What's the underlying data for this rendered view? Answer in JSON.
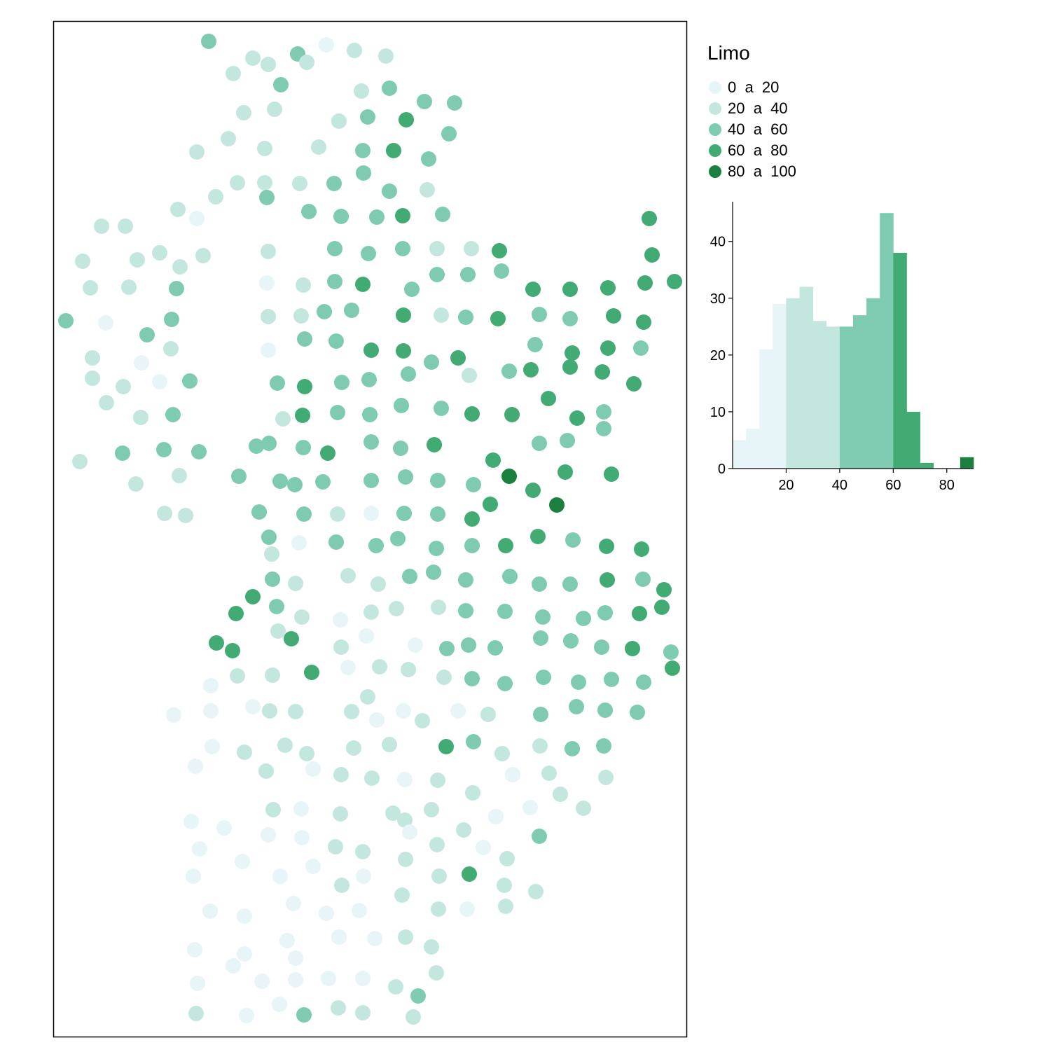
{
  "legend": {
    "title": "Limo",
    "classes": [
      {
        "label": "0  a  20",
        "color": "#e7f4f8"
      },
      {
        "label": "20  a  40",
        "color": "#c3e6df"
      },
      {
        "label": "40  a  60",
        "color": "#7ecbb2"
      },
      {
        "label": "60  a  80",
        "color": "#42ab74"
      },
      {
        "label": "80  a  100",
        "color": "#1b7f3f"
      }
    ]
  },
  "chart_data": {
    "type": "bar",
    "bin_width": 5,
    "bins": [
      {
        "x0": 0,
        "count": 5,
        "class": 0
      },
      {
        "x0": 5,
        "count": 7,
        "class": 0
      },
      {
        "x0": 10,
        "count": 21,
        "class": 0
      },
      {
        "x0": 15,
        "count": 29,
        "class": 0
      },
      {
        "x0": 20,
        "count": 30,
        "class": 1
      },
      {
        "x0": 25,
        "count": 32,
        "class": 1
      },
      {
        "x0": 30,
        "count": 26,
        "class": 1
      },
      {
        "x0": 35,
        "count": 25,
        "class": 1
      },
      {
        "x0": 40,
        "count": 25,
        "class": 2
      },
      {
        "x0": 45,
        "count": 27,
        "class": 2
      },
      {
        "x0": 50,
        "count": 30,
        "class": 2
      },
      {
        "x0": 55,
        "count": 45,
        "class": 2
      },
      {
        "x0": 60,
        "count": 38,
        "class": 3
      },
      {
        "x0": 65,
        "count": 10,
        "class": 3
      },
      {
        "x0": 70,
        "count": 1,
        "class": 3
      },
      {
        "x0": 75,
        "count": 0,
        "class": 3
      },
      {
        "x0": 80,
        "count": 0,
        "class": 4
      },
      {
        "x0": 85,
        "count": 2,
        "class": 4
      }
    ],
    "xlim": [
      0,
      90
    ],
    "ylim": [
      0,
      47
    ],
    "xticks": [
      20,
      40,
      60,
      80
    ],
    "yticks": [
      0,
      10,
      20,
      30,
      40
    ],
    "grid": false
  },
  "map_points": [
    [
      298,
      59,
      2
    ],
    [
      466,
      64,
      0
    ],
    [
      425,
      77,
      2
    ],
    [
      506,
      72,
      1
    ],
    [
      551,
      80,
      1
    ],
    [
      361,
      83,
      1
    ],
    [
      383,
      92,
      1
    ],
    [
      438,
      89,
      1
    ],
    [
      333,
      105,
      1
    ],
    [
      401,
      121,
      2
    ],
    [
      516,
      130,
      1
    ],
    [
      556,
      126,
      2
    ],
    [
      606,
      145,
      2
    ],
    [
      649,
      147,
      2
    ],
    [
      392,
      156,
      1
    ],
    [
      348,
      161,
      1
    ],
    [
      484,
      173,
      1
    ],
    [
      525,
      167,
      2
    ],
    [
      580,
      171,
      3
    ],
    [
      641,
      191,
      2
    ],
    [
      326,
      198,
      1
    ],
    [
      378,
      212,
      1
    ],
    [
      455,
      210,
      1
    ],
    [
      281,
      217,
      1
    ],
    [
      518,
      215,
      2
    ],
    [
      562,
      215,
      3
    ],
    [
      612,
      227,
      2
    ],
    [
      519,
      247,
      2
    ],
    [
      339,
      261,
      1
    ],
    [
      378,
      261,
      1
    ],
    [
      428,
      262,
      1
    ],
    [
      477,
      262,
      2
    ],
    [
      556,
      273,
      2
    ],
    [
      610,
      271,
      1
    ],
    [
      381,
      282,
      2
    ],
    [
      308,
      281,
      1
    ],
    [
      254,
      299,
      1
    ],
    [
      281,
      312,
      0
    ],
    [
      441,
      302,
      2
    ],
    [
      487,
      309,
      2
    ],
    [
      538,
      310,
      2
    ],
    [
      575,
      308,
      3
    ],
    [
      632,
      306,
      2
    ],
    [
      927,
      312,
      3
    ],
    [
      145,
      323,
      1
    ],
    [
      179,
      323,
      1
    ],
    [
      478,
      355,
      2
    ],
    [
      526,
      362,
      2
    ],
    [
      575,
      355,
      2
    ],
    [
      624,
      355,
      1
    ],
    [
      673,
      355,
      1
    ],
    [
      713,
      358,
      3
    ],
    [
      931,
      364,
      3
    ],
    [
      383,
      359,
      1
    ],
    [
      290,
      365,
      1
    ],
    [
      228,
      361,
      1
    ],
    [
      196,
      371,
      1
    ],
    [
      118,
      373,
      1
    ],
    [
      257,
      381,
      1
    ],
    [
      624,
      392,
      2
    ],
    [
      668,
      392,
      2
    ],
    [
      716,
      387,
      2
    ],
    [
      129,
      411,
      1
    ],
    [
      184,
      410,
      1
    ],
    [
      252,
      412,
      2
    ],
    [
      381,
      404,
      0
    ],
    [
      433,
      407,
      1
    ],
    [
      478,
      402,
      2
    ],
    [
      518,
      406,
      3
    ],
    [
      588,
      413,
      2
    ],
    [
      761,
      413,
      3
    ],
    [
      814,
      413,
      3
    ],
    [
      868,
      411,
      3
    ],
    [
      921,
      404,
      3
    ],
    [
      963,
      402,
      3
    ],
    [
      94,
      458,
      2
    ],
    [
      151,
      461,
      0
    ],
    [
      245,
      456,
      2
    ],
    [
      383,
      452,
      1
    ],
    [
      430,
      451,
      1
    ],
    [
      463,
      445,
      2
    ],
    [
      502,
      443,
      2
    ],
    [
      576,
      450,
      3
    ],
    [
      630,
      450,
      1
    ],
    [
      665,
      453,
      2
    ],
    [
      711,
      455,
      3
    ],
    [
      770,
      449,
      2
    ],
    [
      814,
      455,
      2
    ],
    [
      876,
      451,
      3
    ],
    [
      919,
      460,
      3
    ],
    [
      210,
      478,
      2
    ],
    [
      244,
      498,
      1
    ],
    [
      383,
      500,
      0
    ],
    [
      435,
      484,
      2
    ],
    [
      480,
      487,
      2
    ],
    [
      530,
      500,
      3
    ],
    [
      576,
      501,
      3
    ],
    [
      764,
      492,
      2
    ],
    [
      817,
      504,
      3
    ],
    [
      868,
      497,
      3
    ],
    [
      915,
      497,
      2
    ],
    [
      132,
      511,
      1
    ],
    [
      202,
      518,
      0
    ],
    [
      616,
      517,
      2
    ],
    [
      654,
      511,
      3
    ],
    [
      132,
      540,
      1
    ],
    [
      176,
      552,
      1
    ],
    [
      228,
      545,
      0
    ],
    [
      271,
      544,
      2
    ],
    [
      396,
      547,
      2
    ],
    [
      435,
      552,
      3
    ],
    [
      488,
      546,
      2
    ],
    [
      527,
      542,
      2
    ],
    [
      583,
      534,
      2
    ],
    [
      670,
      536,
      1
    ],
    [
      727,
      530,
      2
    ],
    [
      758,
      528,
      3
    ],
    [
      814,
      524,
      3
    ],
    [
      860,
      531,
      3
    ],
    [
      905,
      548,
      3
    ],
    [
      152,
      575,
      1
    ],
    [
      201,
      596,
      1
    ],
    [
      247,
      592,
      2
    ],
    [
      404,
      598,
      1
    ],
    [
      432,
      593,
      3
    ],
    [
      482,
      589,
      2
    ],
    [
      528,
      592,
      2
    ],
    [
      573,
      579,
      2
    ],
    [
      630,
      583,
      2
    ],
    [
      674,
      591,
      3
    ],
    [
      731,
      592,
      3
    ],
    [
      783,
      569,
      3
    ],
    [
      824,
      597,
      3
    ],
    [
      862,
      588,
      2
    ],
    [
      862,
      612,
      2
    ],
    [
      114,
      659,
      1
    ],
    [
      175,
      647,
      2
    ],
    [
      234,
      642,
      2
    ],
    [
      284,
      645,
      2
    ],
    [
      366,
      637,
      2
    ],
    [
      384,
      633,
      2
    ],
    [
      433,
      639,
      2
    ],
    [
      468,
      647,
      3
    ],
    [
      530,
      631,
      2
    ],
    [
      572,
      640,
      2
    ],
    [
      620,
      635,
      3
    ],
    [
      770,
      633,
      2
    ],
    [
      810,
      629,
      2
    ],
    [
      704,
      657,
      3
    ],
    [
      194,
      691,
      1
    ],
    [
      256,
      679,
      1
    ],
    [
      341,
      680,
      2
    ],
    [
      400,
      687,
      2
    ],
    [
      421,
      692,
      2
    ],
    [
      461,
      688,
      2
    ],
    [
      530,
      686,
      2
    ],
    [
      579,
      681,
      2
    ],
    [
      625,
      686,
      2
    ],
    [
      676,
      692,
      2
    ],
    [
      727,
      680,
      4
    ],
    [
      807,
      674,
      3
    ],
    [
      873,
      677,
      3
    ],
    [
      761,
      700,
      3
    ],
    [
      235,
      733,
      1
    ],
    [
      265,
      736,
      1
    ],
    [
      370,
      731,
      2
    ],
    [
      434,
      734,
      2
    ],
    [
      482,
      734,
      1
    ],
    [
      530,
      733,
      0
    ],
    [
      577,
      733,
      2
    ],
    [
      625,
      734,
      2
    ],
    [
      674,
      741,
      3
    ],
    [
      700,
      720,
      3
    ],
    [
      795,
      721,
      4
    ],
    [
      384,
      767,
      2
    ],
    [
      427,
      775,
      0
    ],
    [
      480,
      774,
      2
    ],
    [
      537,
      779,
      2
    ],
    [
      568,
      769,
      2
    ],
    [
      623,
      783,
      2
    ],
    [
      674,
      779,
      2
    ],
    [
      722,
      779,
      3
    ],
    [
      768,
      766,
      3
    ],
    [
      818,
      771,
      2
    ],
    [
      866,
      780,
      3
    ],
    [
      916,
      784,
      3
    ],
    [
      388,
      791,
      1
    ],
    [
      389,
      827,
      2
    ],
    [
      422,
      833,
      1
    ],
    [
      497,
      822,
      1
    ],
    [
      540,
      834,
      1
    ],
    [
      585,
      823,
      2
    ],
    [
      619,
      817,
      2
    ],
    [
      665,
      828,
      2
    ],
    [
      728,
      823,
      2
    ],
    [
      770,
      834,
      2
    ],
    [
      814,
      834,
      2
    ],
    [
      867,
      828,
      3
    ],
    [
      918,
      827,
      2
    ],
    [
      948,
      842,
      3
    ],
    [
      361,
      852,
      3
    ],
    [
      395,
      866,
      2
    ],
    [
      337,
      876,
      3
    ],
    [
      431,
      881,
      1
    ],
    [
      486,
      885,
      0
    ],
    [
      530,
      874,
      1
    ],
    [
      566,
      869,
      1
    ],
    [
      626,
      867,
      1
    ],
    [
      665,
      872,
      2
    ],
    [
      721,
      873,
      2
    ],
    [
      775,
      881,
      2
    ],
    [
      833,
      883,
      2
    ],
    [
      864,
      875,
      2
    ],
    [
      913,
      876,
      3
    ],
    [
      945,
      867,
      3
    ],
    [
      397,
      901,
      1
    ],
    [
      416,
      912,
      3
    ],
    [
      309,
      918,
      3
    ],
    [
      332,
      929,
      3
    ],
    [
      487,
      924,
      1
    ],
    [
      523,
      908,
      0
    ],
    [
      593,
      921,
      0
    ],
    [
      638,
      926,
      2
    ],
    [
      669,
      921,
      2
    ],
    [
      707,
      925,
      2
    ],
    [
      772,
      911,
      2
    ],
    [
      815,
      915,
      2
    ],
    [
      859,
      924,
      2
    ],
    [
      903,
      926,
      3
    ],
    [
      958,
      931,
      2
    ],
    [
      960,
      954,
      3
    ],
    [
      301,
      979,
      0
    ],
    [
      339,
      965,
      1
    ],
    [
      389,
      964,
      1
    ],
    [
      445,
      960,
      3
    ],
    [
      497,
      953,
      0
    ],
    [
      542,
      952,
      1
    ],
    [
      583,
      956,
      1
    ],
    [
      634,
      967,
      1
    ],
    [
      674,
      969,
      2
    ],
    [
      721,
      976,
      2
    ],
    [
      776,
      967,
      2
    ],
    [
      826,
      974,
      2
    ],
    [
      873,
      970,
      2
    ],
    [
      919,
      974,
      2
    ],
    [
      248,
      1021,
      0
    ],
    [
      301,
      1015,
      0
    ],
    [
      361,
      1009,
      0
    ],
    [
      385,
      1015,
      1
    ],
    [
      422,
      1016,
      1
    ],
    [
      502,
      1016,
      1
    ],
    [
      538,
      1028,
      0
    ],
    [
      576,
      1015,
      0
    ],
    [
      603,
      1029,
      1
    ],
    [
      654,
      1015,
      0
    ],
    [
      697,
      1020,
      1
    ],
    [
      525,
      995,
      1
    ],
    [
      772,
      1020,
      2
    ],
    [
      823,
      1009,
      2
    ],
    [
      864,
      1014,
      2
    ],
    [
      910,
      1017,
      2
    ],
    [
      303,
      1066,
      0
    ],
    [
      349,
      1074,
      1
    ],
    [
      407,
      1064,
      1
    ],
    [
      438,
      1076,
      1
    ],
    [
      505,
      1068,
      1
    ],
    [
      556,
      1063,
      1
    ],
    [
      637,
      1066,
      3
    ],
    [
      676,
      1059,
      2
    ],
    [
      717,
      1076,
      1
    ],
    [
      771,
      1065,
      1
    ],
    [
      817,
      1069,
      2
    ],
    [
      862,
      1065,
      2
    ],
    [
      279,
      1094,
      0
    ],
    [
      380,
      1101,
      1
    ],
    [
      447,
      1098,
      0
    ],
    [
      487,
      1106,
      1
    ],
    [
      531,
      1111,
      1
    ],
    [
      578,
      1113,
      0
    ],
    [
      625,
      1114,
      1
    ],
    [
      675,
      1132,
      1
    ],
    [
      732,
      1106,
      0
    ],
    [
      784,
      1104,
      1
    ],
    [
      865,
      1110,
      1
    ],
    [
      800,
      1134,
      1
    ],
    [
      833,
      1154,
      1
    ],
    [
      273,
      1173,
      0
    ],
    [
      320,
      1182,
      0
    ],
    [
      390,
      1156,
      1
    ],
    [
      430,
      1155,
      0
    ],
    [
      486,
      1162,
      1
    ],
    [
      561,
      1161,
      1
    ],
    [
      578,
      1171,
      1
    ],
    [
      616,
      1156,
      1
    ],
    [
      708,
      1166,
      0
    ],
    [
      757,
      1153,
      0
    ],
    [
      383,
      1192,
      0
    ],
    [
      431,
      1196,
      0
    ],
    [
      585,
      1188,
      0
    ],
    [
      662,
      1185,
      1
    ],
    [
      770,
      1194,
      2
    ],
    [
      285,
      1212,
      0
    ],
    [
      346,
      1230,
      0
    ],
    [
      479,
      1209,
      1
    ],
    [
      518,
      1216,
      1
    ],
    [
      579,
      1227,
      1
    ],
    [
      624,
      1206,
      1
    ],
    [
      690,
      1210,
      0
    ],
    [
      724,
      1226,
      1
    ],
    [
      276,
      1251,
      0
    ],
    [
      400,
      1251,
      0
    ],
    [
      447,
      1237,
      0
    ],
    [
      488,
      1264,
      1
    ],
    [
      519,
      1251,
      0
    ],
    [
      574,
      1278,
      1
    ],
    [
      627,
      1251,
      1
    ],
    [
      670,
      1248,
      3
    ],
    [
      720,
      1264,
      1
    ],
    [
      765,
      1273,
      1
    ],
    [
      300,
      1301,
      0
    ],
    [
      349,
      1308,
      0
    ],
    [
      419,
      1290,
      0
    ],
    [
      466,
      1304,
      0
    ],
    [
      513,
      1300,
      0
    ],
    [
      626,
      1298,
      1
    ],
    [
      667,
      1298,
      0
    ],
    [
      722,
      1294,
      1
    ],
    [
      278,
      1356,
      0
    ],
    [
      349,
      1362,
      0
    ],
    [
      410,
      1343,
      0
    ],
    [
      422,
      1368,
      0
    ],
    [
      484,
      1338,
      0
    ],
    [
      535,
      1340,
      0
    ],
    [
      579,
      1338,
      1
    ],
    [
      616,
      1352,
      1
    ],
    [
      333,
      1379,
      0
    ],
    [
      282,
      1404,
      0
    ],
    [
      374,
      1401,
      0
    ],
    [
      422,
      1399,
      0
    ],
    [
      469,
      1397,
      0
    ],
    [
      518,
      1397,
      0
    ],
    [
      565,
      1409,
      1
    ],
    [
      623,
      1389,
      1
    ],
    [
      597,
      1422,
      2
    ],
    [
      280,
      1447,
      1
    ],
    [
      352,
      1450,
      0
    ],
    [
      399,
      1434,
      0
    ],
    [
      434,
      1449,
      2
    ],
    [
      483,
      1439,
      1
    ],
    [
      518,
      1446,
      1
    ],
    [
      590,
      1452,
      1
    ]
  ]
}
